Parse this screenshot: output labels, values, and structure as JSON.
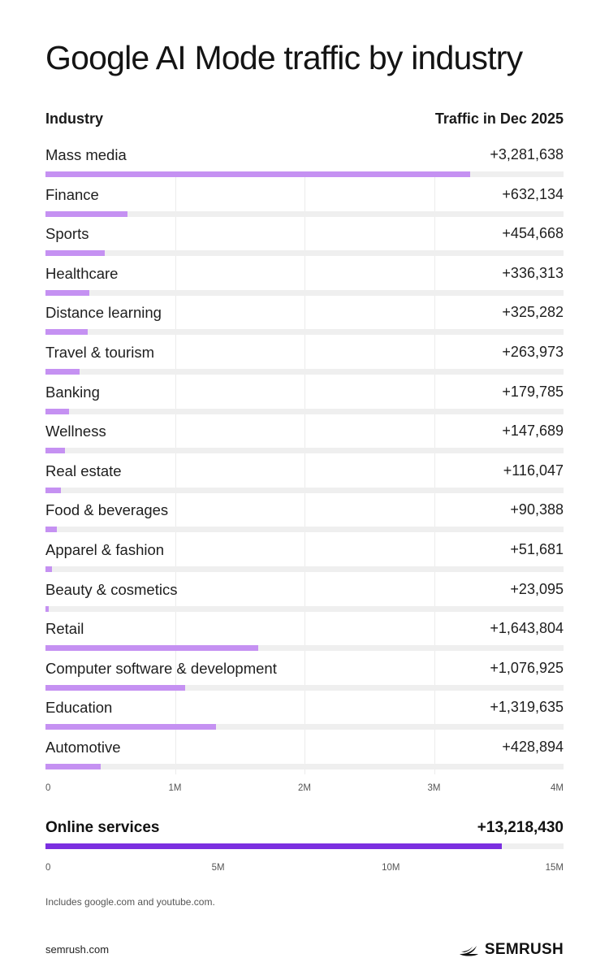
{
  "title": "Google AI Mode traffic by industry",
  "header": {
    "industry": "Industry",
    "traffic": "Traffic in Dec 2025"
  },
  "colors": {
    "bar": "#c591f2",
    "bar_highlight": "#7b2fe0",
    "track": "#efefef"
  },
  "chart_data": [
    {
      "type": "bar",
      "orientation": "horizontal",
      "title": "Google AI Mode traffic by industry",
      "xlabel": "Traffic in Dec 2025",
      "ylabel": "Industry",
      "xlim": [
        0,
        4000000
      ],
      "xticks": [
        "0",
        "1M",
        "2M",
        "3M",
        "4M"
      ],
      "grid": true,
      "categories": [
        "Mass media",
        "Finance",
        "Sports",
        "Healthcare",
        "Distance learning",
        "Travel & tourism",
        "Banking",
        "Wellness",
        "Real estate",
        "Food & beverages",
        "Apparel & fashion",
        "Beauty & cosmetics",
        "Retail",
        "Computer software & development",
        "Education",
        "Automotive"
      ],
      "values": [
        3281638,
        632134,
        454668,
        336313,
        325282,
        263973,
        179785,
        147689,
        116047,
        90388,
        51681,
        23095,
        1643804,
        1076925,
        1319635,
        428894
      ],
      "labels": [
        "+3,281,638",
        "+632,134",
        "+454,668",
        "+336,313",
        "+325,282",
        "+263,973",
        "+179,785",
        "+147,689",
        "+116,047",
        "+90,388",
        "+51,681",
        "+23,095",
        "+1,643,804",
        "+1,076,925",
        "+1,319,635",
        "+428,894"
      ]
    },
    {
      "type": "bar",
      "orientation": "horizontal",
      "xlim": [
        0,
        15000000
      ],
      "xticks": [
        "0",
        "5M",
        "10M",
        "15M"
      ],
      "categories": [
        "Online services"
      ],
      "values": [
        13218430
      ],
      "labels": [
        "+13,218,430"
      ]
    }
  ],
  "note": "Includes google.com and youtube.com.",
  "footer": {
    "site": "semrush.com",
    "brand": "SEMRUSH",
    "brand_icon": "semrush-flame-icon"
  }
}
